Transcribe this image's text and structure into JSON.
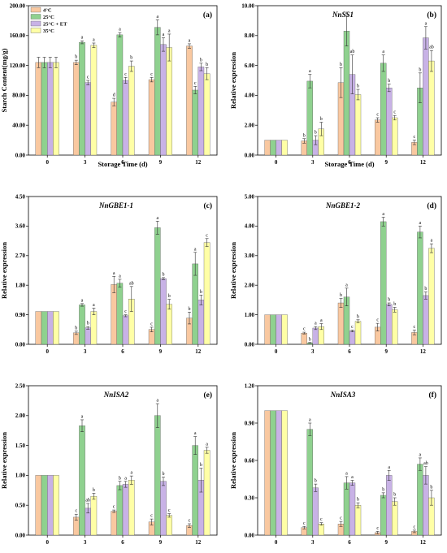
{
  "figure": {
    "colors": {
      "4C": "#f9c8a0",
      "25C": "#8fd18f",
      "25CET": "#c8b2e6",
      "35C": "#ffffa6"
    },
    "legend_labels": [
      "4°C",
      "25°C",
      "25°C + ET",
      "35°C"
    ]
  },
  "chart_data": [
    {
      "panel": "(a)",
      "title": "",
      "type": "bar",
      "xlabel": "Storage Time (d)",
      "ylabel": "Starch Content(mg/g)",
      "categories": [
        "0",
        "3",
        "6",
        "9",
        "12"
      ],
      "ylim": [
        0,
        200
      ],
      "yticks": [
        "0.00",
        "40.00",
        "80.00",
        "120.00",
        "160.00",
        "200.00"
      ],
      "series": [
        {
          "name": "4°C",
          "values": [
            124,
            124,
            71,
            101,
            146
          ],
          "errors": [
            7,
            3,
            5,
            3,
            3
          ],
          "sig": [
            "",
            "b",
            "d",
            "c",
            "a"
          ]
        },
        {
          "name": "25°C",
          "values": [
            124,
            151,
            161,
            171,
            87
          ],
          "errors": [
            7,
            2,
            3,
            10,
            5
          ],
          "sig": [
            "",
            "a",
            "a",
            "a",
            "c"
          ]
        },
        {
          "name": "25°C + ET",
          "values": [
            124,
            97,
            100,
            148,
            118
          ],
          "errors": [
            7,
            3,
            4,
            9,
            5
          ],
          "sig": [
            "",
            "c",
            "c",
            "a",
            "b"
          ]
        },
        {
          "name": "35°C",
          "values": [
            124,
            147,
            119,
            144,
            109
          ],
          "errors": [
            7,
            3,
            7,
            18,
            8
          ],
          "sig": [
            "",
            "a",
            "b",
            "a",
            "b"
          ]
        }
      ]
    },
    {
      "panel": "(b)",
      "title": "NnSS1",
      "type": "bar",
      "xlabel": "Storage Time (d)",
      "ylabel": "Relative expression",
      "categories": [
        "0",
        "3",
        "6",
        "9",
        "12"
      ],
      "ylim": [
        0,
        10
      ],
      "yticks": [
        "0.00",
        "2.00",
        "4.00",
        "6.00",
        "8.00",
        "10.00"
      ],
      "series": [
        {
          "name": "4°C",
          "values": [
            1.0,
            0.95,
            4.85,
            2.35,
            0.85
          ],
          "errors": [
            0,
            0.15,
            1.0,
            0.15,
            0.15
          ],
          "sig": [
            "",
            "b",
            "b",
            "c",
            "c"
          ]
        },
        {
          "name": "25°C",
          "values": [
            1.0,
            4.95,
            8.3,
            6.15,
            4.5
          ],
          "errors": [
            0,
            0.45,
            1.0,
            0.55,
            1.0
          ],
          "sig": [
            "",
            "a",
            "a",
            "a",
            "b"
          ]
        },
        {
          "name": "25°C + ET",
          "values": [
            1.0,
            1.0,
            5.4,
            4.5,
            7.85
          ],
          "errors": [
            0,
            0.3,
            1.3,
            0.25,
            0.75
          ],
          "sig": [
            "",
            "b",
            "ab",
            "b",
            "a"
          ]
        },
        {
          "name": "35°C",
          "values": [
            1.0,
            1.75,
            4.05,
            2.5,
            6.3
          ],
          "errors": [
            0,
            0.45,
            0.35,
            0.15,
            0.7
          ],
          "sig": [
            "",
            "b",
            "b",
            "c",
            "ab"
          ]
        }
      ]
    },
    {
      "panel": "(c)",
      "title": "NnGBE1-1",
      "type": "bar",
      "xlabel": "",
      "ylabel": "Relative expression",
      "categories": [
        "0",
        "3",
        "6",
        "9",
        "12"
      ],
      "ylim": [
        0,
        4.5
      ],
      "yticks": [
        "0.00",
        "0.90",
        "1.80",
        "2.70",
        "3.60",
        "4.50"
      ],
      "series": [
        {
          "name": "4°C",
          "values": [
            1.0,
            0.35,
            1.82,
            0.45,
            0.8
          ],
          "errors": [
            0,
            0.05,
            0.25,
            0.07,
            0.18
          ],
          "sig": [
            "",
            "b",
            "a",
            "c",
            "b"
          ]
        },
        {
          "name": "25°C",
          "values": [
            1.0,
            1.2,
            1.86,
            3.55,
            2.45
          ],
          "errors": [
            0,
            0.04,
            0.12,
            0.2,
            0.35
          ],
          "sig": [
            "",
            "a",
            "a",
            "a",
            "a"
          ]
        },
        {
          "name": "25°C + ET",
          "values": [
            1.0,
            0.5,
            0.87,
            2.0,
            1.35
          ],
          "errors": [
            0,
            0.04,
            0.03,
            0.03,
            0.15
          ],
          "sig": [
            "",
            "b",
            "c",
            "b",
            "b"
          ]
        },
        {
          "name": "35°C",
          "values": [
            1.0,
            1.0,
            1.38,
            1.22,
            3.1
          ],
          "errors": [
            0,
            0.1,
            0.38,
            0.15,
            0.12
          ],
          "sig": [
            "",
            "a",
            "ab",
            "b",
            "c"
          ]
        }
      ]
    },
    {
      "panel": "(d)",
      "title": "NnGBE1-2",
      "type": "bar",
      "xlabel": "",
      "ylabel": "Relative expression",
      "categories": [
        "0",
        "3",
        "6",
        "9",
        "12"
      ],
      "ylim": [
        0,
        5
      ],
      "yticks": [
        "0.00",
        "1.00",
        "2.00",
        "3.00",
        "4.00",
        "5.00"
      ],
      "series": [
        {
          "name": "4°C",
          "values": [
            1.0,
            0.38,
            1.4,
            0.58,
            0.4
          ],
          "errors": [
            0,
            0.03,
            0.15,
            0.13,
            0.08
          ],
          "sig": [
            "",
            "c",
            "b",
            "c",
            "c"
          ]
        },
        {
          "name": "25°C",
          "values": [
            1.0,
            0.05,
            1.6,
            4.15,
            3.8
          ],
          "errors": [
            0,
            0.01,
            0.3,
            0.15,
            0.2
          ],
          "sig": [
            "",
            "b",
            "a",
            "a",
            "a"
          ]
        },
        {
          "name": "25°C + ET",
          "values": [
            1.0,
            0.55,
            0.45,
            1.35,
            1.65
          ],
          "errors": [
            0,
            0.05,
            0.03,
            0.05,
            0.12
          ],
          "sig": [
            "",
            "a",
            "c",
            "b",
            "b"
          ]
        },
        {
          "name": "35°C",
          "values": [
            1.0,
            0.6,
            0.78,
            1.17,
            3.25
          ],
          "errors": [
            0,
            0.1,
            0.05,
            0.08,
            0.15
          ],
          "sig": [
            "",
            "a",
            "b",
            "b",
            "a"
          ]
        }
      ]
    },
    {
      "panel": "(e)",
      "title": "NnISA2",
      "type": "bar",
      "xlabel": "",
      "ylabel": "Relative expression",
      "categories": [
        "0",
        "3",
        "6",
        "9",
        "12"
      ],
      "ylim": [
        0,
        2.5
      ],
      "yticks": [
        "0.00",
        "0.50",
        "1.00",
        "1.50",
        "2.00",
        "2.50"
      ],
      "series": [
        {
          "name": "4°C",
          "values": [
            1.0,
            0.3,
            0.4,
            0.22,
            0.16
          ],
          "errors": [
            0,
            0.05,
            0.02,
            0.05,
            0.03
          ],
          "sig": [
            "",
            "c",
            "c",
            "c",
            "c"
          ]
        },
        {
          "name": "25°C",
          "values": [
            1.0,
            1.83,
            0.83,
            2.0,
            1.5
          ],
          "errors": [
            0,
            0.1,
            0.07,
            0.2,
            0.15
          ],
          "sig": [
            "",
            "a",
            "b",
            "a",
            "a"
          ]
        },
        {
          "name": "25°C + ET",
          "values": [
            1.0,
            0.45,
            0.85,
            0.9,
            0.92
          ],
          "errors": [
            0,
            0.08,
            0.05,
            0.07,
            0.2
          ],
          "sig": [
            "",
            "ab",
            "a",
            "b",
            "b"
          ]
        },
        {
          "name": "35°C",
          "values": [
            1.0,
            0.65,
            0.92,
            0.33,
            1.42
          ],
          "errors": [
            0,
            0.05,
            0.07,
            0.03,
            0.05
          ],
          "sig": [
            "",
            "b",
            "a",
            "c",
            "a"
          ]
        }
      ]
    },
    {
      "panel": "(f)",
      "title": "NnISA3",
      "type": "bar",
      "xlabel": "",
      "ylabel": "Relative expression",
      "categories": [
        "0",
        "3",
        "6",
        "9",
        "12"
      ],
      "ylim": [
        0,
        1.2
      ],
      "yticks": [
        "0.00",
        "0.30",
        "0.60",
        "0.90",
        "1.20"
      ],
      "series": [
        {
          "name": "4°C",
          "values": [
            1.0,
            0.06,
            0.09,
            0.02,
            0.03
          ],
          "errors": [
            0,
            0.01,
            0.02,
            0.01,
            0.01
          ],
          "sig": [
            "",
            "c",
            "c",
            "c",
            "c"
          ]
        },
        {
          "name": "25°C",
          "values": [
            1.0,
            0.85,
            0.42,
            0.32,
            0.57
          ],
          "errors": [
            0,
            0.05,
            0.05,
            0.02,
            0.05
          ],
          "sig": [
            "",
            "a",
            "a",
            "b",
            "a"
          ]
        },
        {
          "name": "25°C + ET",
          "values": [
            1.0,
            0.38,
            0.42,
            0.48,
            0.48
          ],
          "errors": [
            0,
            0.03,
            0.02,
            0.04,
            0.07
          ],
          "sig": [
            "",
            "b",
            "a",
            "a",
            "ab"
          ]
        },
        {
          "name": "35°C",
          "values": [
            1.0,
            0.09,
            0.24,
            0.27,
            0.3
          ],
          "errors": [
            0,
            0.01,
            0.02,
            0.03,
            0.06
          ],
          "sig": [
            "",
            "c",
            "b",
            "b",
            "b"
          ]
        }
      ]
    }
  ]
}
